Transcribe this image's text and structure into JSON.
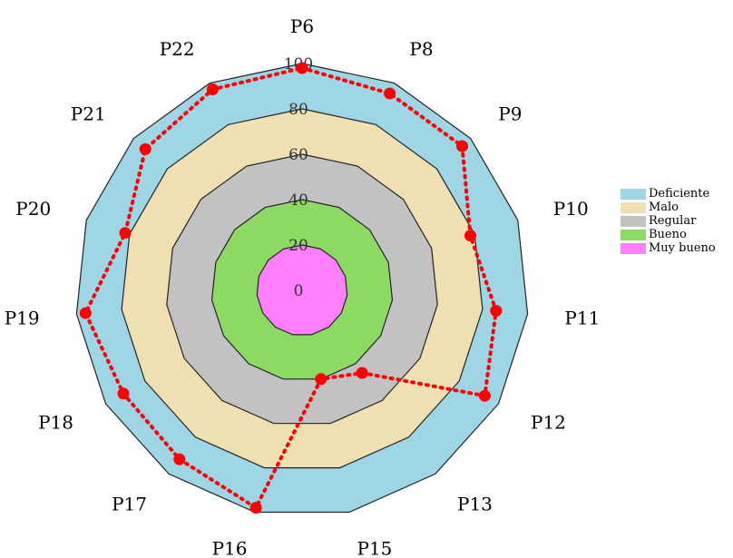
{
  "chart_data": {
    "type": "radar",
    "title": "",
    "axes": [
      "P6",
      "P8",
      "P9",
      "P10",
      "P11",
      "P12",
      "P13",
      "P15",
      "P16",
      "P17",
      "P18",
      "P19",
      "P20",
      "P21",
      "P22"
    ],
    "rlim": [
      0,
      100
    ],
    "ticks": [
      0,
      20,
      40,
      60,
      80,
      100
    ],
    "tick_labels": [
      "0",
      "20",
      "40",
      "60",
      "80",
      "100"
    ],
    "bands": [
      {
        "name": "Muy bueno",
        "from": 0,
        "to": 20,
        "color": "#ff80ff"
      },
      {
        "name": "Bueno",
        "from": 20,
        "to": 40,
        "color": "#8cd964"
      },
      {
        "name": "Regular",
        "from": 40,
        "to": 60,
        "color": "#c2c2c2"
      },
      {
        "name": "Malo",
        "from": 60,
        "to": 80,
        "color": "#efe0b2"
      },
      {
        "name": "Deficiente",
        "from": 80,
        "to": 100,
        "color": "#9fd6e6"
      }
    ],
    "series": [
      {
        "values": [
          98,
          95,
          95,
          78,
          86,
          93,
          45,
          40,
          98,
          92,
          91,
          96,
          82,
          93,
          97
        ],
        "color": "#ff0000"
      }
    ],
    "legend": {
      "placement": "right",
      "entries": [
        {
          "label": "Deficiente",
          "color": "#9fd6e6"
        },
        {
          "label": "Malo",
          "color": "#efe0b2"
        },
        {
          "label": "Regular",
          "color": "#c2c2c2"
        },
        {
          "label": "Bueno",
          "color": "#8cd964"
        },
        {
          "label": "Muy bueno",
          "color": "#ff80ff"
        }
      ]
    }
  }
}
